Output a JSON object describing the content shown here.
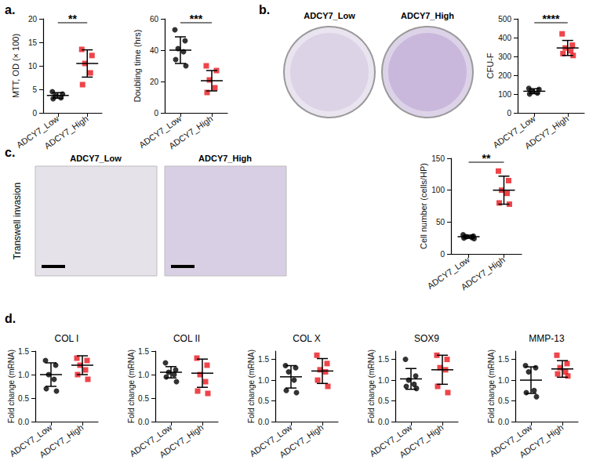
{
  "panel_labels": [
    "a.",
    "b.",
    "c.",
    "d."
  ],
  "images": [
    {
      "panel": "b.",
      "labels": [
        "ADCY7_Low",
        "ADCY7_High"
      ]
    },
    {
      "panel": "c.",
      "labels": [
        "ADCY7_Low",
        "ADCY7_High"
      ],
      "row_label": "Transwell invasion"
    }
  ],
  "chart_data": [
    {
      "type": "scatter",
      "y_label": "MTT, OD (× 100)",
      "categories": [
        "ADCY7_Low",
        "ADCY7_High"
      ],
      "series": [
        {
          "color": "#000000",
          "marker": "circle",
          "points": [
            4.5,
            4.0,
            3.6,
            3.2,
            3.0
          ],
          "mean": 3.7,
          "sd": 0.6
        },
        {
          "color": "#e8161d",
          "marker": "square",
          "points": [
            13.5,
            12.2,
            10.5,
            8.5,
            6.0
          ],
          "mean": 10.5,
          "sd": 2.9
        }
      ],
      "significance": "**",
      "ylim": [
        0,
        20
      ],
      "yticks": [
        0,
        5,
        10,
        15,
        20
      ]
    },
    {
      "type": "scatter",
      "y_label": "Doubling time (hrs)",
      "categories": [
        "ADCY7_Low",
        "ADCY7_High"
      ],
      "series": [
        {
          "color": "#000000",
          "marker": "circle",
          "points": [
            53,
            46,
            41,
            39,
            34,
            30
          ],
          "mean": 40,
          "sd": 8.5
        },
        {
          "color": "#e8161d",
          "marker": "square",
          "points": [
            30,
            27,
            21,
            16,
            13
          ],
          "mean": 20.5,
          "sd": 6.5
        }
      ],
      "significance": "***",
      "ylim": [
        0,
        60
      ],
      "yticks": [
        0,
        20,
        40,
        60
      ]
    },
    {
      "type": "scatter",
      "y_label": "CFU-F",
      "categories": [
        "ADCY7_Low",
        "ADCY7_High"
      ],
      "series": [
        {
          "color": "#000000",
          "marker": "circle",
          "points": [
            130,
            125,
            115,
            105,
            100
          ],
          "mean": 115,
          "sd": 13
        },
        {
          "color": "#e8161d",
          "marker": "square",
          "points": [
            420,
            360,
            345,
            330,
            315,
            305
          ],
          "mean": 345,
          "sd": 40
        }
      ],
      "significance": "****",
      "ylim": [
        0,
        500
      ],
      "yticks": [
        0,
        100,
        200,
        300,
        400,
        500
      ]
    },
    {
      "type": "scatter",
      "y_label": "Cell number (cells/HP)",
      "categories": [
        "ADCY7_Low",
        "ADCY7_High"
      ],
      "series": [
        {
          "color": "#000000",
          "marker": "circle",
          "points": [
            30,
            28,
            27,
            26,
            25,
            24
          ],
          "mean": 27,
          "sd": 2.5
        },
        {
          "color": "#e8161d",
          "marker": "square",
          "points": [
            130,
            115,
            100,
            95,
            80,
            78
          ],
          "mean": 100,
          "sd": 22
        }
      ],
      "significance": "**",
      "ylim": [
        0,
        150
      ],
      "yticks": [
        0,
        50,
        100,
        150
      ]
    },
    {
      "type": "scatter",
      "title": "COL I",
      "y_label": "Fold change (mRNA)",
      "categories": [
        "ADCY7_Low",
        "ADCY7_High"
      ],
      "series": [
        {
          "color": "#000000",
          "marker": "circle",
          "points": [
            1.3,
            1.2,
            1.0,
            0.9,
            0.7,
            0.65
          ],
          "mean": 1.0,
          "sd": 0.25
        },
        {
          "color": "#e8161d",
          "marker": "square",
          "points": [
            1.35,
            1.3,
            1.2,
            1.1,
            1.0,
            0.9
          ],
          "mean": 1.2,
          "sd": 0.2
        }
      ],
      "ylim": [
        0,
        1.5
      ],
      "yticks": [
        {
          "value": 0,
          "label": "0.0"
        },
        0.5,
        {
          "value": 1,
          "label": "1.0"
        },
        1.5
      ]
    },
    {
      "type": "scatter",
      "title": "COL II",
      "y_label": "Fold change (mRNA)",
      "categories": [
        "ADCY7_Low",
        "ADCY7_High"
      ],
      "series": [
        {
          "color": "#000000",
          "marker": "circle",
          "points": [
            1.25,
            1.1,
            1.05,
            1.0,
            0.95,
            0.85
          ],
          "mean": 1.05,
          "sd": 0.12
        },
        {
          "color": "#e8161d",
          "marker": "square",
          "points": [
            1.35,
            1.2,
            1.0,
            0.85,
            0.65,
            0.6
          ],
          "mean": 1.03,
          "sd": 0.3
        }
      ],
      "ylim": [
        0,
        1.5
      ],
      "yticks": [
        {
          "value": 0,
          "label": "0.0"
        },
        0.5,
        {
          "value": 1,
          "label": "1.0"
        },
        1.5
      ]
    },
    {
      "type": "scatter",
      "title": "COL X",
      "y_label": "Fold change (mRNA)",
      "categories": [
        "ADCY7_Low",
        "ADCY7_High"
      ],
      "series": [
        {
          "color": "#000000",
          "marker": "circle",
          "points": [
            1.35,
            1.3,
            1.2,
            1.0,
            0.75,
            0.7
          ],
          "mean": 1.08,
          "sd": 0.27
        },
        {
          "color": "#e8161d",
          "marker": "square",
          "points": [
            1.6,
            1.4,
            1.25,
            1.2,
            1.0,
            0.85
          ],
          "mean": 1.22,
          "sd": 0.3
        }
      ],
      "ylim": [
        0,
        1.7
      ],
      "yticks": [
        {
          "value": 0,
          "label": "0.0"
        },
        0.5,
        {
          "value": 1,
          "label": "1.0"
        },
        1.5
      ]
    },
    {
      "type": "scatter",
      "title": "SOX9",
      "y_label": "Fold change (mRNA)",
      "categories": [
        "ADCY7_Low",
        "ADCY7_High"
      ],
      "series": [
        {
          "color": "#000000",
          "marker": "circle",
          "points": [
            1.5,
            1.1,
            1.0,
            0.9,
            0.85,
            0.8
          ],
          "mean": 1.03,
          "sd": 0.25
        },
        {
          "color": "#e8161d",
          "marker": "square",
          "points": [
            1.6,
            1.5,
            1.3,
            1.25,
            0.85,
            0.7
          ],
          "mean": 1.25,
          "sd": 0.35
        }
      ],
      "ylim": [
        0,
        1.7
      ],
      "yticks": [
        {
          "value": 0,
          "label": "0.0"
        },
        0.5,
        {
          "value": 1,
          "label": "1.0"
        },
        1.5
      ]
    },
    {
      "type": "scatter",
      "title": "MMP-13",
      "y_label": "Fold change (mRNA)",
      "categories": [
        "ADCY7_Low",
        "ADCY7_High"
      ],
      "series": [
        {
          "color": "#000000",
          "marker": "circle",
          "points": [
            1.35,
            1.3,
            1.2,
            0.75,
            0.7,
            0.6
          ],
          "mean": 1.0,
          "sd": 0.32
        },
        {
          "color": "#e8161d",
          "marker": "square",
          "points": [
            1.6,
            1.4,
            1.3,
            1.2,
            1.15,
            1.1
          ],
          "mean": 1.27,
          "sd": 0.2
        }
      ],
      "ylim": [
        0,
        1.7
      ],
      "yticks": [
        {
          "value": 0,
          "label": "0.0"
        },
        0.5,
        {
          "value": 1,
          "label": "1.0"
        },
        1.5
      ]
    }
  ]
}
